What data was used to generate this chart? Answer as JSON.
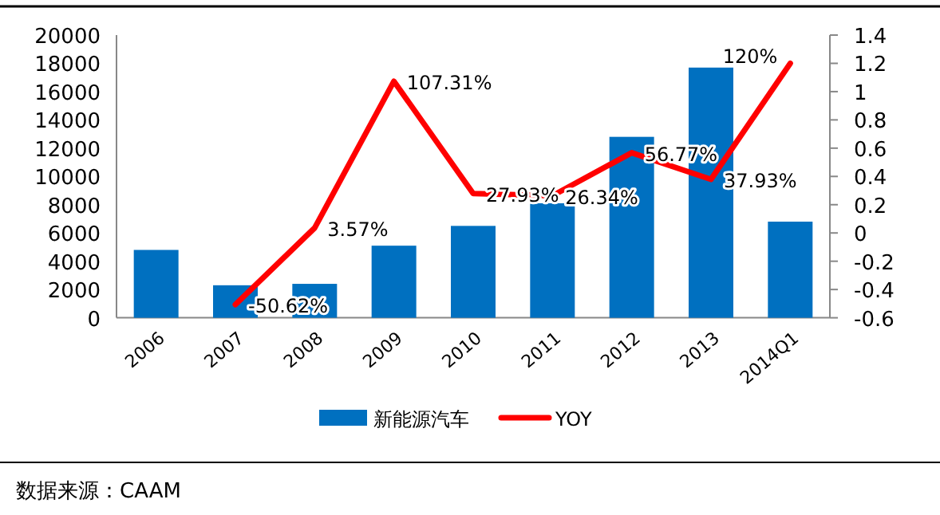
{
  "chart_data": {
    "type": "bar",
    "categories": [
      "2006",
      "2007",
      "2008",
      "2009",
      "2010",
      "2011",
      "2012",
      "2013",
      "2014Q1"
    ],
    "series": [
      {
        "name": "新能源汽车",
        "color": "#0070c0",
        "values": [
          4800,
          2300,
          2400,
          5100,
          6500,
          8100,
          12800,
          17700,
          6800
        ]
      },
      {
        "name": "YOY",
        "type": "line",
        "axis": "y2",
        "color": "#ff0000",
        "values": [
          null,
          -0.5062,
          0.0357,
          1.0731,
          0.2793,
          0.2634,
          0.5677,
          0.3793,
          1.2
        ],
        "value_labels": [
          null,
          "-50.62%",
          "3.57%",
          "107.31%",
          "27.93%",
          "26.34%",
          "56.77%",
          "37.93%",
          "120%"
        ]
      }
    ],
    "ylim": [
      0,
      20000
    ],
    "yticks": [
      0,
      2000,
      4000,
      6000,
      8000,
      10000,
      12000,
      14000,
      16000,
      18000,
      20000
    ],
    "y2lim": [
      -0.6,
      1.4
    ],
    "y2ticks": [
      -0.6,
      -0.4,
      -0.2,
      0,
      0.2,
      0.4,
      0.6,
      0.8,
      1,
      1.2,
      1.4
    ],
    "legend": "bottom",
    "grid": false,
    "marker": "none",
    "annotations": [
      "数据来源：CAAM"
    ]
  }
}
